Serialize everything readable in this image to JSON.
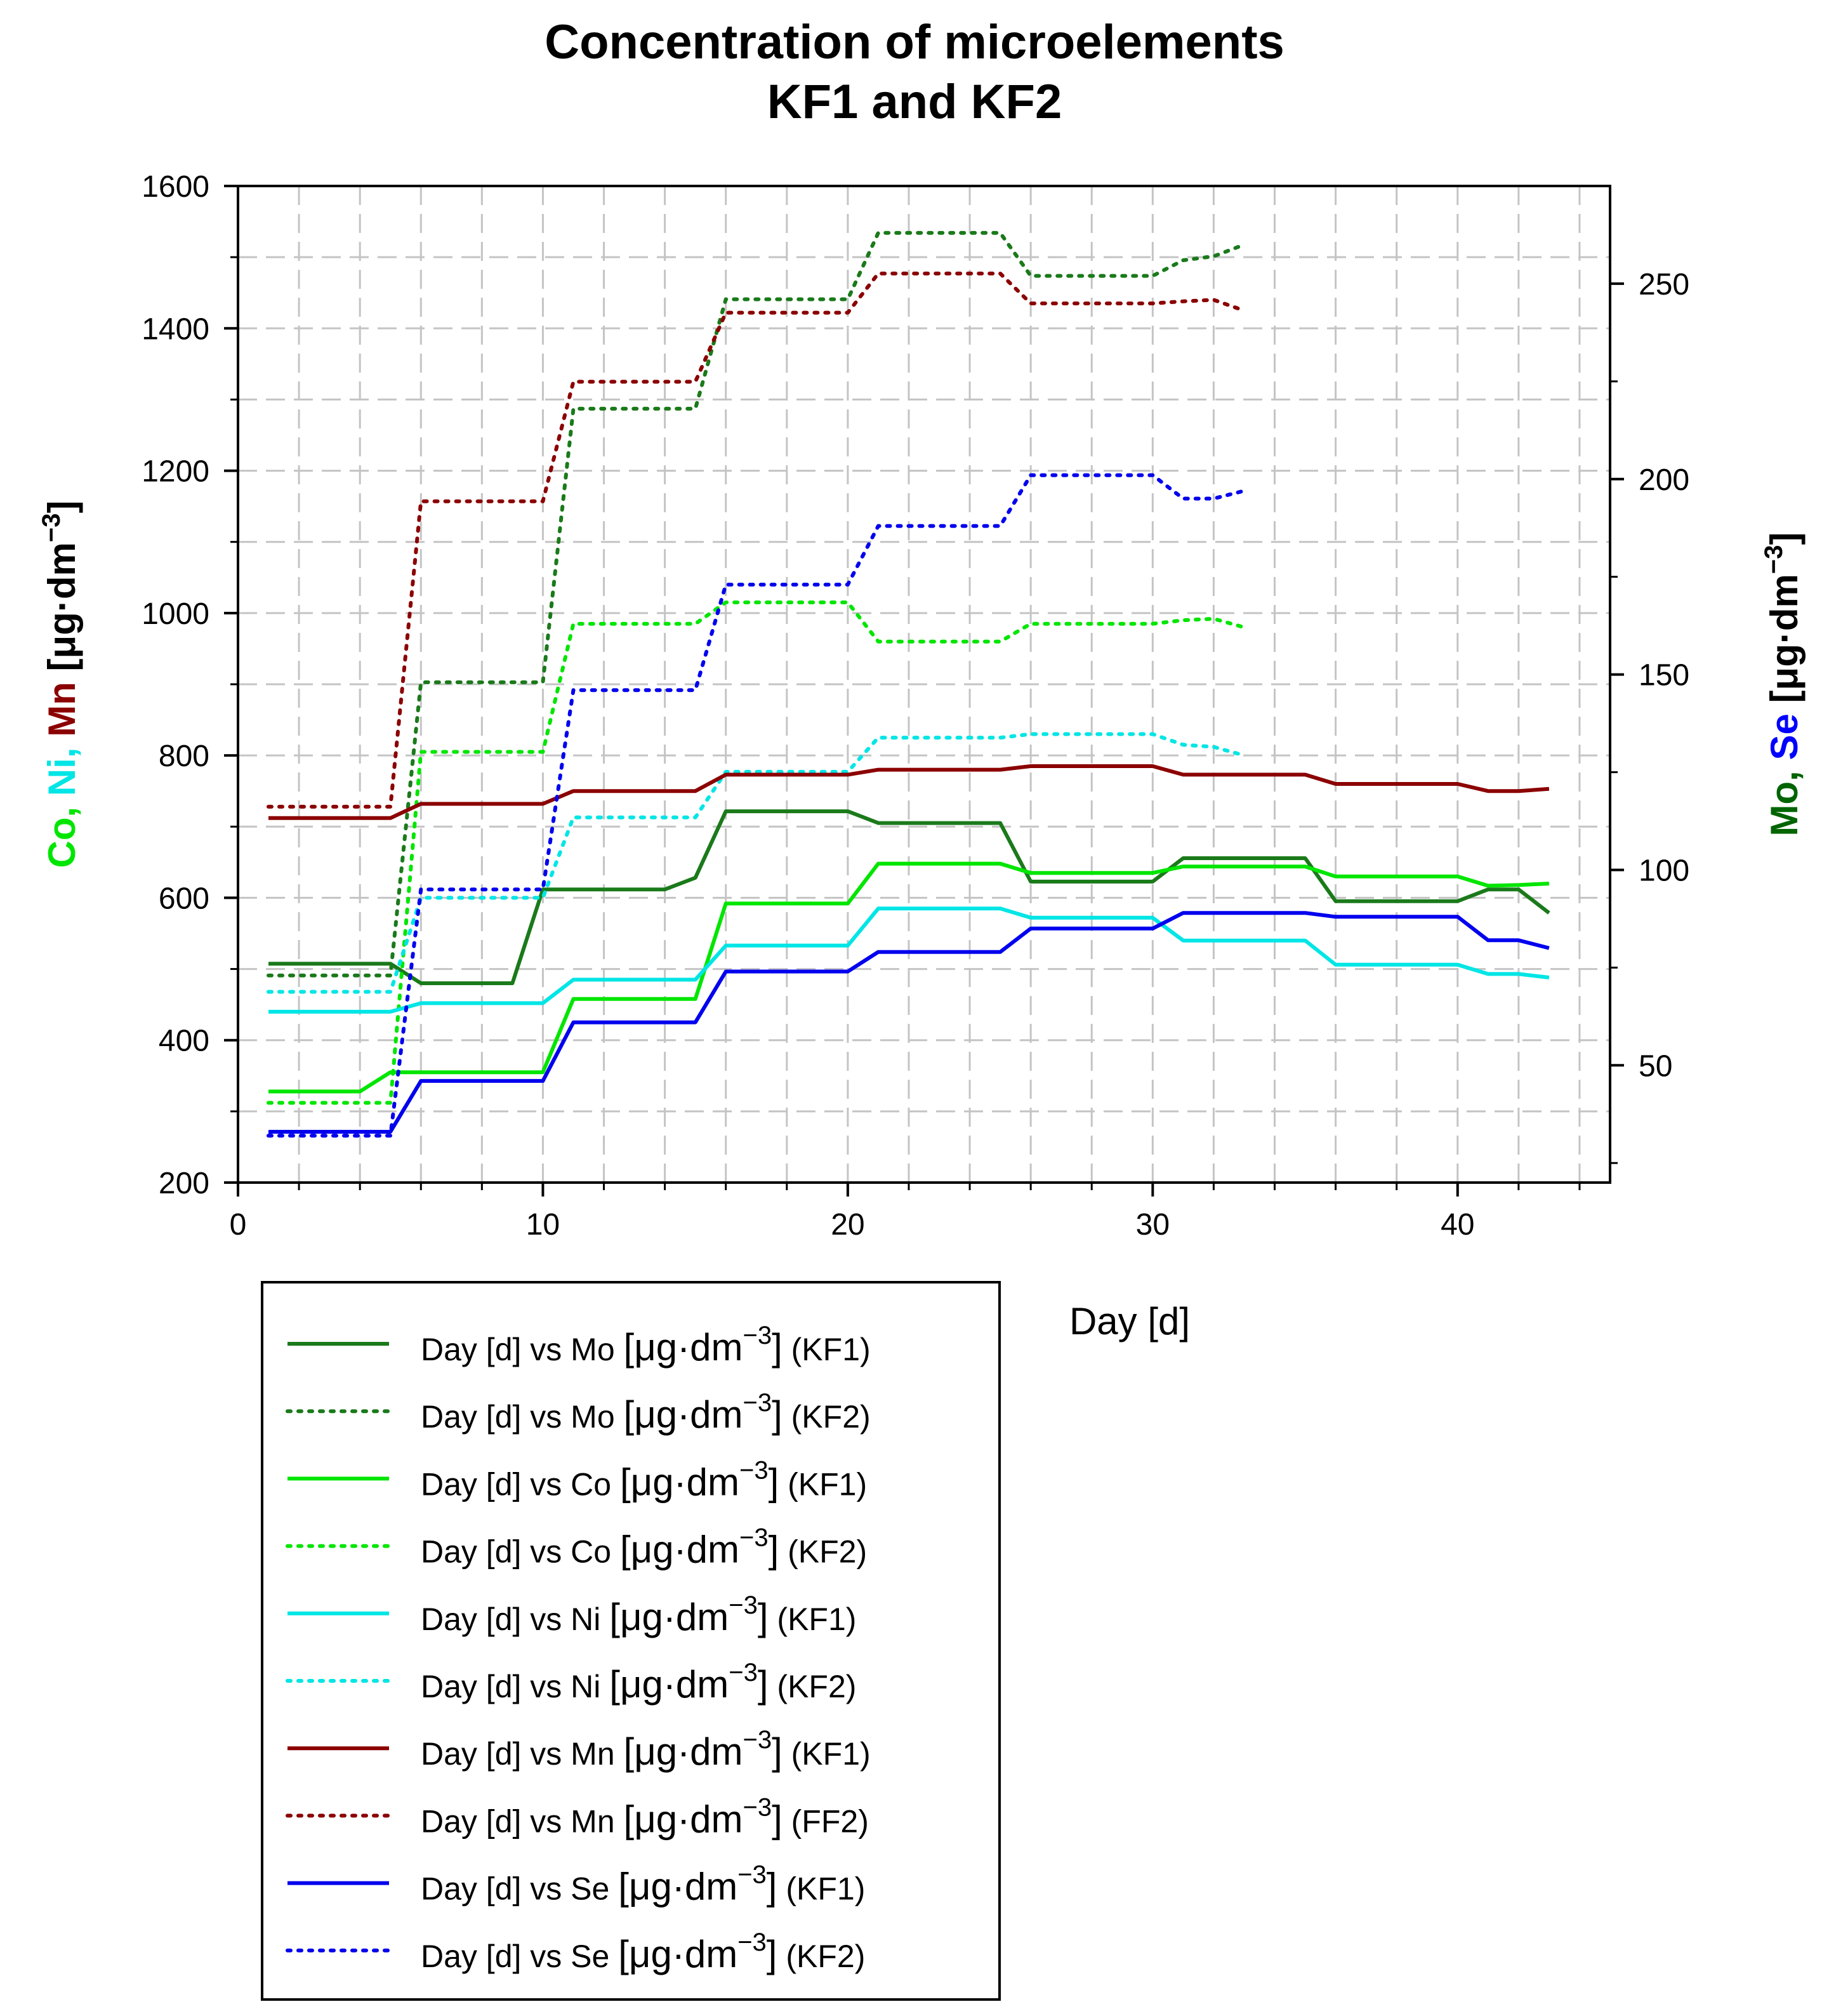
{
  "chart_data": {
    "type": "line",
    "title": [
      "Concentration of microelements",
      "KF1 and KF2"
    ],
    "xlabel": "Day [d]",
    "xlim": [
      0,
      45
    ],
    "xticks": [
      0,
      10,
      20,
      30,
      40
    ],
    "left_axis": {
      "ylim": [
        200,
        1600
      ],
      "ticks": [
        200,
        400,
        600,
        800,
        1000,
        1200,
        1400,
        1600
      ],
      "label_parts": [
        {
          "text": "Co, ",
          "color": "#00e600"
        },
        {
          "text": "Ni, ",
          "color": "#00e5e5"
        },
        {
          "text": "Mn ",
          "color": "#8b0000"
        },
        {
          "text": "[μg·dm",
          "color": "#000000"
        },
        {
          "text": "−3",
          "color": "#000000",
          "sup": true
        },
        {
          "text": "]",
          "color": "#000000"
        }
      ]
    },
    "right_axis": {
      "ylim": [
        20,
        275
      ],
      "ticks": [
        50,
        100,
        150,
        200,
        250
      ],
      "label_parts": [
        {
          "text": "Mo, ",
          "color": "#006400"
        },
        {
          "text": "Se ",
          "color": "#0000ff"
        },
        {
          "text": "[μg·dm",
          "color": "#000000"
        },
        {
          "text": "−3",
          "color": "#000000",
          "sup": true
        },
        {
          "text": "]",
          "color": "#000000"
        }
      ]
    },
    "grid": true,
    "legend_position": "below-left",
    "series": [
      {
        "name": "Mo KF1",
        "axis": "right",
        "style": "solid",
        "color": "#1a7a1a",
        "x": [
          1,
          5,
          6,
          9,
          10,
          14,
          15,
          16,
          20,
          21,
          25,
          26,
          30,
          31,
          35,
          36,
          40,
          41,
          42,
          43
        ],
        "y": [
          76,
          76,
          71,
          71,
          95,
          95,
          98,
          115,
          115,
          112,
          112,
          97,
          97,
          103,
          103,
          92,
          92,
          95,
          95,
          89
        ]
      },
      {
        "name": "Mo KF2",
        "axis": "right",
        "style": "dotted",
        "color": "#1a7a1a",
        "x": [
          1,
          5,
          6,
          10,
          11,
          15,
          16,
          20,
          21,
          25,
          26,
          30,
          31,
          32,
          33
        ],
        "y": [
          73,
          73,
          148,
          148,
          218,
          218,
          246,
          246,
          263,
          263,
          252,
          252,
          256,
          257,
          260
        ]
      },
      {
        "name": "Co KF1",
        "axis": "left",
        "style": "solid",
        "color": "#00e600",
        "x": [
          1,
          4,
          5,
          10,
          11,
          15,
          16,
          20,
          21,
          25,
          26,
          30,
          31,
          35,
          36,
          40,
          41,
          42,
          43
        ],
        "y": [
          328,
          328,
          355,
          355,
          458,
          458,
          592,
          592,
          648,
          648,
          635,
          635,
          644,
          644,
          630,
          630,
          617,
          618,
          620
        ]
      },
      {
        "name": "Co KF2",
        "axis": "left",
        "style": "dotted",
        "color": "#00e600",
        "x": [
          1,
          5,
          6,
          10,
          11,
          15,
          16,
          20,
          21,
          25,
          26,
          30,
          31,
          32,
          33
        ],
        "y": [
          312,
          312,
          805,
          805,
          985,
          985,
          1015,
          1015,
          960,
          960,
          985,
          985,
          990,
          992,
          980
        ]
      },
      {
        "name": "Ni KF1",
        "axis": "left",
        "style": "solid",
        "color": "#00e5e5",
        "x": [
          1,
          5,
          6,
          10,
          11,
          15,
          16,
          20,
          21,
          25,
          26,
          30,
          31,
          35,
          36,
          40,
          41,
          42,
          43
        ],
        "y": [
          440,
          440,
          452,
          452,
          485,
          485,
          533,
          533,
          585,
          585,
          572,
          572,
          540,
          540,
          506,
          506,
          493,
          493,
          488
        ]
      },
      {
        "name": "Ni KF2",
        "axis": "left",
        "style": "dotted",
        "color": "#00e5e5",
        "x": [
          1,
          5,
          6,
          10,
          11,
          15,
          16,
          20,
          21,
          25,
          26,
          30,
          31,
          32,
          33
        ],
        "y": [
          468,
          468,
          600,
          600,
          713,
          713,
          777,
          777,
          825,
          825,
          830,
          830,
          815,
          812,
          800
        ]
      },
      {
        "name": "Mn KF1",
        "axis": "left",
        "style": "solid",
        "color": "#8b0000",
        "x": [
          1,
          5,
          6,
          10,
          11,
          15,
          16,
          20,
          21,
          25,
          26,
          30,
          31,
          35,
          36,
          40,
          41,
          42,
          43
        ],
        "y": [
          712,
          712,
          732,
          732,
          750,
          750,
          773,
          773,
          780,
          780,
          785,
          785,
          773,
          773,
          760,
          760,
          750,
          750,
          753
        ]
      },
      {
        "name": "Mn FF2",
        "axis": "left",
        "style": "dotted",
        "color": "#8b0000",
        "x": [
          1,
          5,
          6,
          10,
          11,
          15,
          16,
          20,
          21,
          25,
          26,
          30,
          31,
          32,
          33
        ],
        "y": [
          728,
          728,
          1157,
          1157,
          1325,
          1325,
          1422,
          1422,
          1477,
          1477,
          1435,
          1435,
          1438,
          1440,
          1425
        ]
      },
      {
        "name": "Se KF1",
        "axis": "right",
        "style": "solid",
        "color": "#0000ee",
        "x": [
          1,
          5,
          6,
          10,
          11,
          15,
          16,
          20,
          21,
          25,
          26,
          30,
          31,
          35,
          36,
          40,
          41,
          42,
          43
        ],
        "y": [
          33,
          33,
          46,
          46,
          61,
          61,
          74,
          74,
          79,
          79,
          85,
          85,
          89,
          89,
          88,
          88,
          82,
          82,
          80
        ]
      },
      {
        "name": "Se KF2",
        "axis": "right",
        "style": "dotted",
        "color": "#0000ee",
        "x": [
          1,
          5,
          6,
          10,
          11,
          15,
          16,
          20,
          21,
          25,
          26,
          30,
          31,
          32,
          33
        ],
        "y": [
          32,
          32,
          95,
          95,
          146,
          146,
          173,
          173,
          188,
          188,
          201,
          201,
          195,
          195,
          197
        ]
      }
    ],
    "legend": [
      {
        "prefix": "Day [d] vs Mo ",
        "unit": "[μg·dm",
        "sup": "−3",
        "close": "]",
        "suffix": " (KF1)"
      },
      {
        "prefix": "Day [d] vs Mo ",
        "unit": "[μg·dm",
        "sup": "−3",
        "close": "]",
        "suffix": " (KF2)"
      },
      {
        "prefix": "Day [d] vs Co ",
        "unit": "[μg·dm",
        "sup": "−3",
        "close": "]",
        "suffix": " (KF1)"
      },
      {
        "prefix": "Day [d] vs Co ",
        "unit": "[μg·dm",
        "sup": "−3",
        "close": "]",
        "suffix": " (KF2)"
      },
      {
        "prefix": "Day [d] vs Ni ",
        "unit": "[μg·dm",
        "sup": "−3",
        "close": "]",
        "suffix": " (KF1)"
      },
      {
        "prefix": "Day [d] vs Ni ",
        "unit": "[μg·dm",
        "sup": "−3",
        "close": "]",
        "suffix": " (KF2)"
      },
      {
        "prefix": "Day [d] vs Mn ",
        "unit": "[μg·dm",
        "sup": "−3",
        "close": "]",
        "suffix": " (KF1)"
      },
      {
        "prefix": "Day [d] vs Mn ",
        "unit": "[μg·dm",
        "sup": "−3",
        "close": "]",
        "suffix": " (FF2)"
      },
      {
        "prefix": "Day [d] vs Se ",
        "unit": "[μg·dm",
        "sup": "−3",
        "close": "]",
        "suffix": " (KF1)"
      },
      {
        "prefix": "Day [d] vs Se ",
        "unit": "[μg·dm",
        "sup": "−3",
        "close": "]",
        "suffix": " (KF2)"
      }
    ]
  }
}
